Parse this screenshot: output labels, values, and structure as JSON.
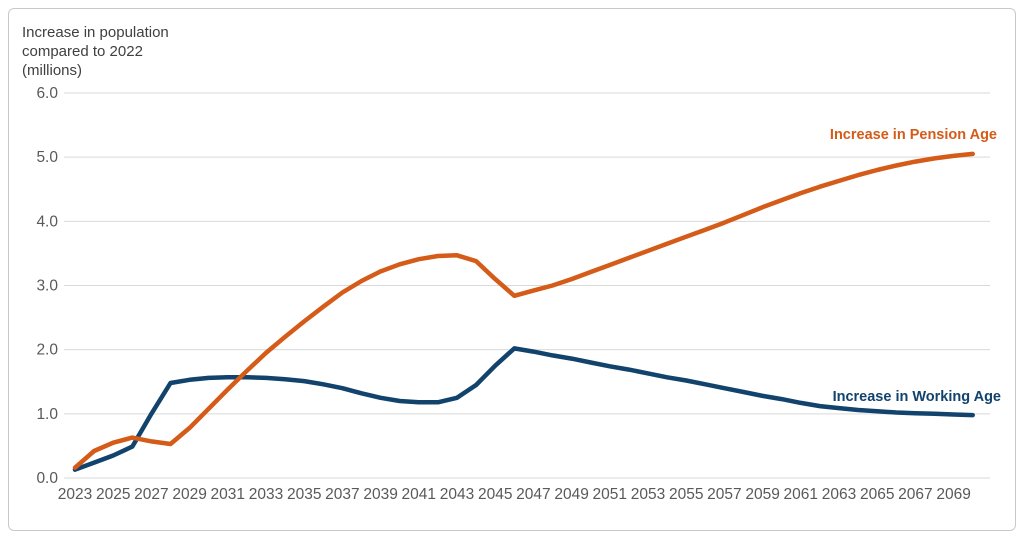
{
  "frame": {
    "border_color": "#c9c9c9",
    "background_color": "#ffffff",
    "gridline_color": "#d9d9d9",
    "tick_text_color": "#595959",
    "title_text_color": "#404040"
  },
  "chart_data": {
    "type": "line",
    "title": "Increase in population\ncompared to 2022\n(millions)",
    "xlabel": "",
    "ylabel": "Increase in population compared to 2022 (millions)",
    "xlim": [
      2023,
      2070
    ],
    "ylim": [
      0,
      6
    ],
    "grid": "horizontal only",
    "legend_position": "direct labels at line ends",
    "y_ticks": [
      "0.0",
      "1.0",
      "2.0",
      "3.0",
      "4.0",
      "5.0",
      "6.0"
    ],
    "x_tick_labels": [
      "2023",
      "2025",
      "2027",
      "2029",
      "2031",
      "2033",
      "2035",
      "2037",
      "2039",
      "2041",
      "2043",
      "2045",
      "2047",
      "2049",
      "2051",
      "2053",
      "2055",
      "2057",
      "2059",
      "2061",
      "2063",
      "2065",
      "2067",
      "2069"
    ],
    "x": [
      2023,
      2024,
      2025,
      2026,
      2027,
      2028,
      2029,
      2030,
      2031,
      2032,
      2033,
      2034,
      2035,
      2036,
      2037,
      2038,
      2039,
      2040,
      2041,
      2042,
      2043,
      2044,
      2045,
      2046,
      2047,
      2048,
      2049,
      2050,
      2051,
      2052,
      2053,
      2054,
      2055,
      2056,
      2057,
      2058,
      2059,
      2060,
      2061,
      2062,
      2063,
      2064,
      2065,
      2066,
      2067,
      2068,
      2069,
      2070
    ],
    "series": [
      {
        "name": "Increase in Working Age",
        "color": "#12436d",
        "values": [
          0.13,
          0.24,
          0.35,
          0.49,
          1.0,
          1.48,
          1.53,
          1.56,
          1.57,
          1.57,
          1.56,
          1.54,
          1.51,
          1.46,
          1.4,
          1.32,
          1.25,
          1.2,
          1.18,
          1.18,
          1.25,
          1.45,
          1.75,
          2.02,
          1.97,
          1.91,
          1.86,
          1.8,
          1.74,
          1.69,
          1.63,
          1.57,
          1.52,
          1.46,
          1.4,
          1.34,
          1.28,
          1.23,
          1.17,
          1.12,
          1.09,
          1.06,
          1.04,
          1.02,
          1.01,
          1.0,
          0.99,
          0.98
        ]
      },
      {
        "name": "Increase in Pension Age",
        "color": "#d45b18",
        "values": [
          0.16,
          0.42,
          0.55,
          0.63,
          0.57,
          0.53,
          0.78,
          1.08,
          1.38,
          1.67,
          1.95,
          2.2,
          2.44,
          2.67,
          2.89,
          3.07,
          3.22,
          3.33,
          3.41,
          3.46,
          3.47,
          3.38,
          3.1,
          2.84,
          2.92,
          3.0,
          3.1,
          3.21,
          3.32,
          3.43,
          3.54,
          3.65,
          3.76,
          3.87,
          3.98,
          4.1,
          4.22,
          4.33,
          4.44,
          4.54,
          4.63,
          4.72,
          4.8,
          4.87,
          4.93,
          4.98,
          5.02,
          5.05
        ]
      }
    ]
  }
}
